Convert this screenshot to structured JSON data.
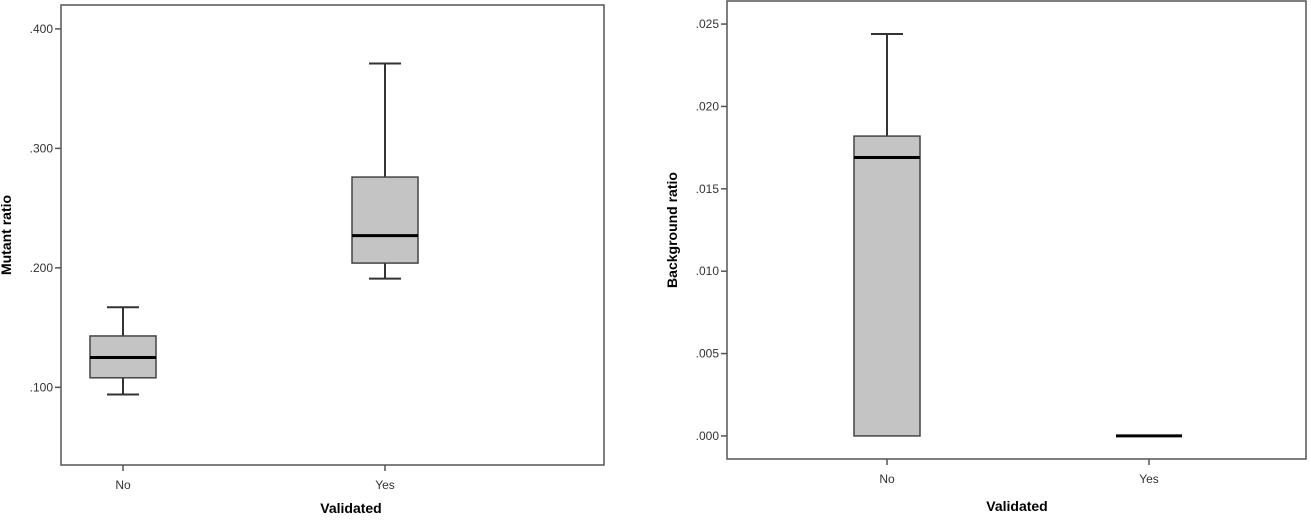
{
  "chart_data": [
    {
      "type": "boxplot",
      "title": "",
      "xlabel": "Validated",
      "ylabel": "Mutant ratio",
      "categories": [
        "No",
        "Yes"
      ],
      "yticks": [
        ".100",
        ".200",
        ".300",
        ".400"
      ],
      "ylim": [
        0.035,
        0.42
      ],
      "grid": false,
      "legend": null,
      "box_fill": "#c4c4c4",
      "series": [
        {
          "name": "No",
          "whisker_low": 0.094,
          "q1": 0.108,
          "median": 0.125,
          "q3": 0.143,
          "whisker_high": 0.167
        },
        {
          "name": "Yes",
          "whisker_low": 0.191,
          "q1": 0.204,
          "median": 0.227,
          "q3": 0.276,
          "whisker_high": 0.371
        }
      ]
    },
    {
      "type": "boxplot",
      "title": "",
      "xlabel": "Validated",
      "ylabel": "Background ratio",
      "categories": [
        "No",
        "Yes"
      ],
      "yticks": [
        ".000",
        ".005",
        ".010",
        ".015",
        ".020",
        ".025"
      ],
      "ylim": [
        -0.0014,
        0.0264
      ],
      "grid": false,
      "legend": null,
      "box_fill": "#c4c4c4",
      "series": [
        {
          "name": "No",
          "whisker_low": 0.0,
          "q1": 0.0,
          "median": 0.0169,
          "q3": 0.0182,
          "whisker_high": 0.0244
        },
        {
          "name": "Yes",
          "whisker_low": 0.0,
          "q1": 0.0,
          "median": 0.0,
          "q3": 0.0,
          "whisker_high": 0.0
        }
      ]
    }
  ]
}
